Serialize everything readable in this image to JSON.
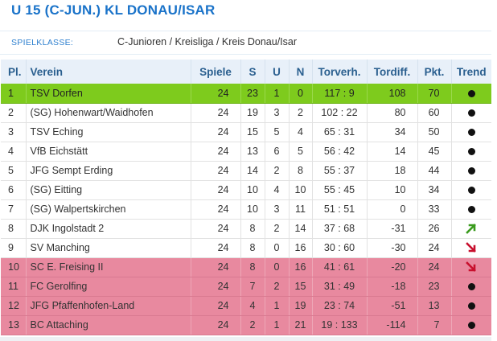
{
  "title": "U 15 (C-JUN.) KL DONAU/ISAR",
  "meta": {
    "label": "SPIELKLASSE:",
    "value": "C-Junioren / Kreisliga / Kreis Donau/Isar"
  },
  "columns": {
    "pl": "Pl.",
    "verein": "Verein",
    "spiele": "Spiele",
    "s": "S",
    "u": "U",
    "n": "N",
    "torverh": "Torverh.",
    "tordiff": "Tordiff.",
    "pkt": "Pkt.",
    "trend": "Trend"
  },
  "colors": {
    "promotion": "#7ecb1d",
    "relegation": "#e8899f",
    "trend_up": "#3a9b1e",
    "trend_down": "#c8102e"
  },
  "rows": [
    {
      "pl": "1",
      "verein": "TSV Dorfen",
      "spiele": "24",
      "s": "23",
      "u": "1",
      "n": "0",
      "torverh": "117 : 9",
      "tordiff": "108",
      "pkt": "70",
      "trend": "dot",
      "zone": "promo"
    },
    {
      "pl": "2",
      "verein": "(SG) Hohenwart/Waidhofen",
      "spiele": "24",
      "s": "19",
      "u": "3",
      "n": "2",
      "torverh": "102 : 22",
      "tordiff": "80",
      "pkt": "60",
      "trend": "dot",
      "zone": ""
    },
    {
      "pl": "3",
      "verein": "TSV Eching",
      "spiele": "24",
      "s": "15",
      "u": "5",
      "n": "4",
      "torverh": "65 : 31",
      "tordiff": "34",
      "pkt": "50",
      "trend": "dot",
      "zone": ""
    },
    {
      "pl": "4",
      "verein": "VfB Eichstätt",
      "spiele": "24",
      "s": "13",
      "u": "6",
      "n": "5",
      "torverh": "56 : 42",
      "tordiff": "14",
      "pkt": "45",
      "trend": "dot",
      "zone": ""
    },
    {
      "pl": "5",
      "verein": "JFG Sempt Erding",
      "spiele": "24",
      "s": "14",
      "u": "2",
      "n": "8",
      "torverh": "55 : 37",
      "tordiff": "18",
      "pkt": "44",
      "trend": "dot",
      "zone": ""
    },
    {
      "pl": "6",
      "verein": "(SG) Eitting",
      "spiele": "24",
      "s": "10",
      "u": "4",
      "n": "10",
      "torverh": "55 : 45",
      "tordiff": "10",
      "pkt": "34",
      "trend": "dot",
      "zone": ""
    },
    {
      "pl": "7",
      "verein": "(SG) Walpertskirchen",
      "spiele": "24",
      "s": "10",
      "u": "3",
      "n": "11",
      "torverh": "51 : 51",
      "tordiff": "0",
      "pkt": "33",
      "trend": "dot",
      "zone": ""
    },
    {
      "pl": "8",
      "verein": "DJK Ingolstadt 2",
      "spiele": "24",
      "s": "8",
      "u": "2",
      "n": "14",
      "torverh": "37 : 68",
      "tordiff": "-31",
      "pkt": "26",
      "trend": "up",
      "zone": ""
    },
    {
      "pl": "9",
      "verein": "SV Manching",
      "spiele": "24",
      "s": "8",
      "u": "0",
      "n": "16",
      "torverh": "30 : 60",
      "tordiff": "-30",
      "pkt": "24",
      "trend": "down",
      "zone": ""
    },
    {
      "pl": "10",
      "verein": "SC E. Freising II",
      "spiele": "24",
      "s": "8",
      "u": "0",
      "n": "16",
      "torverh": "41 : 61",
      "tordiff": "-20",
      "pkt": "24",
      "trend": "down",
      "zone": "releg"
    },
    {
      "pl": "11",
      "verein": "FC Gerolfing",
      "spiele": "24",
      "s": "7",
      "u": "2",
      "n": "15",
      "torverh": "31 : 49",
      "tordiff": "-18",
      "pkt": "23",
      "trend": "dot",
      "zone": "releg"
    },
    {
      "pl": "12",
      "verein": "JFG Pfaffenhofen-Land",
      "spiele": "24",
      "s": "4",
      "u": "1",
      "n": "19",
      "torverh": "23 : 74",
      "tordiff": "-51",
      "pkt": "13",
      "trend": "dot",
      "zone": "releg"
    },
    {
      "pl": "13",
      "verein": "BC Attaching",
      "spiele": "24",
      "s": "2",
      "u": "1",
      "n": "21",
      "torverh": "19 : 133",
      "tordiff": "-114",
      "pkt": "7",
      "trend": "dot",
      "zone": "releg"
    }
  ]
}
